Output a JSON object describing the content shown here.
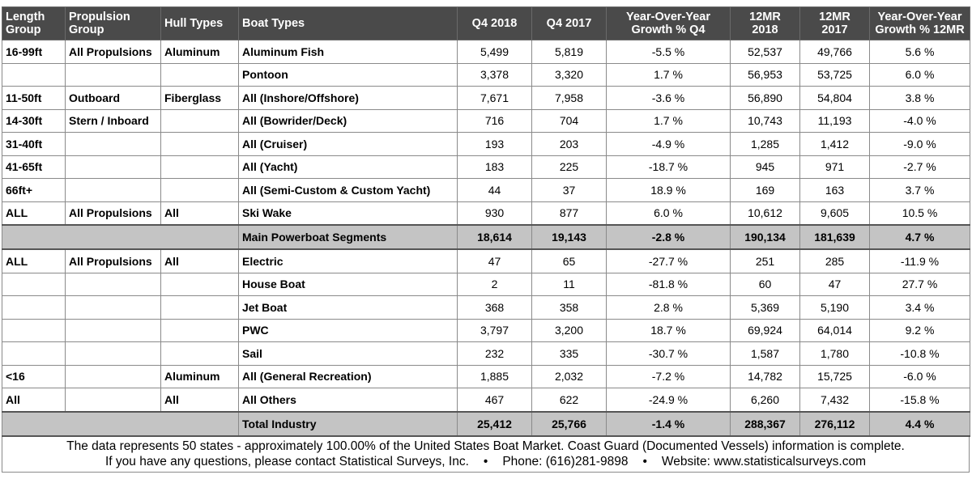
{
  "headers": [
    "Length Group",
    "Propulsion Group",
    "Hull Types",
    "Boat Types",
    "Q4 2018",
    "Q4 2017",
    "Year-Over-Year Growth % Q4",
    "12MR 2018",
    "12MR 2017",
    "Year-Over-Year Growth % 12MR"
  ],
  "header_lines": [
    [
      "Length",
      "Group"
    ],
    [
      "Propulsion",
      "Group"
    ],
    [
      "Hull Types"
    ],
    [
      "Boat Types"
    ],
    [
      "Q4 2018"
    ],
    [
      "Q4 2017"
    ],
    [
      "Year-Over-Year",
      "Growth % Q4"
    ],
    [
      "12MR",
      "2018"
    ],
    [
      "12MR",
      "2017"
    ],
    [
      "Year-Over-Year",
      "Growth % 12MR"
    ]
  ],
  "rows_group1": [
    [
      "16-99ft",
      "All Propulsions",
      "Aluminum",
      "Aluminum Fish",
      "5,499",
      "5,819",
      "-5.5 %",
      "52,537",
      "49,766",
      "5.6 %"
    ],
    [
      "",
      "",
      "",
      "Pontoon",
      "3,378",
      "3,320",
      "1.7 %",
      "56,953",
      "53,725",
      "6.0 %"
    ],
    [
      "11-50ft",
      "Outboard",
      "Fiberglass",
      "All (Inshore/Offshore)",
      "7,671",
      "7,958",
      "-3.6 %",
      "56,890",
      "54,804",
      "3.8 %"
    ],
    [
      "14-30ft",
      "Stern / Inboard",
      "",
      "All (Bowrider/Deck)",
      "716",
      "704",
      "1.7 %",
      "10,743",
      "11,193",
      "-4.0 %"
    ],
    [
      "31-40ft",
      "",
      "",
      "All (Cruiser)",
      "193",
      "203",
      "-4.9 %",
      "1,285",
      "1,412",
      "-9.0 %"
    ],
    [
      "41-65ft",
      "",
      "",
      "All (Yacht)",
      "183",
      "225",
      "-18.7 %",
      "945",
      "971",
      "-2.7 %"
    ],
    [
      "66ft+",
      "",
      "",
      "All (Semi-Custom & Custom Yacht)",
      "44",
      "37",
      "18.9 %",
      "169",
      "163",
      "3.7 %"
    ],
    [
      "ALL",
      "All Propulsions",
      "All",
      "Ski Wake",
      "930",
      "877",
      "6.0 %",
      "10,612",
      "9,605",
      "10.5 %"
    ]
  ],
  "subtotal": [
    "Main Powerboat Segments",
    "18,614",
    "19,143",
    "-2.8 %",
    "190,134",
    "181,639",
    "4.7 %"
  ],
  "rows_group2": [
    [
      "ALL",
      "All Propulsions",
      "All",
      "Electric",
      "47",
      "65",
      "-27.7 %",
      "251",
      "285",
      "-11.9 %"
    ],
    [
      "",
      "",
      "",
      "House Boat",
      "2",
      "11",
      "-81.8 %",
      "60",
      "47",
      "27.7 %"
    ],
    [
      "",
      "",
      "",
      "Jet Boat",
      "368",
      "358",
      "2.8 %",
      "5,369",
      "5,190",
      "3.4 %"
    ],
    [
      "",
      "",
      "",
      "PWC",
      "3,797",
      "3,200",
      "18.7 %",
      "69,924",
      "64,014",
      "9.2 %"
    ],
    [
      "",
      "",
      "",
      "Sail",
      "232",
      "335",
      "-30.7 %",
      "1,587",
      "1,780",
      "-10.8 %"
    ],
    [
      "<16",
      "",
      "Aluminum",
      "All (General Recreation)",
      "1,885",
      "2,032",
      "-7.2 %",
      "14,782",
      "15,725",
      "-6.0 %"
    ],
    [
      "All",
      "",
      "All",
      "All Others",
      "467",
      "622",
      "-24.9 %",
      "6,260",
      "7,432",
      "-15.8 %"
    ]
  ],
  "total": [
    "Total Industry",
    "25,412",
    "25,766",
    "-1.4 %",
    "288,367",
    "276,112",
    "4.4 %"
  ],
  "footer": {
    "line1": "The data represents 50 states - approximately 100.00% of the United States Boat Market.  Coast Guard (Documented Vessels) information is complete.",
    "contact": "If you have any questions, please contact Statistical Surveys, Inc.",
    "separator": "•",
    "phone": "Phone: (616)281-9898",
    "website": "Website: www.statisticalsurveys.com"
  }
}
